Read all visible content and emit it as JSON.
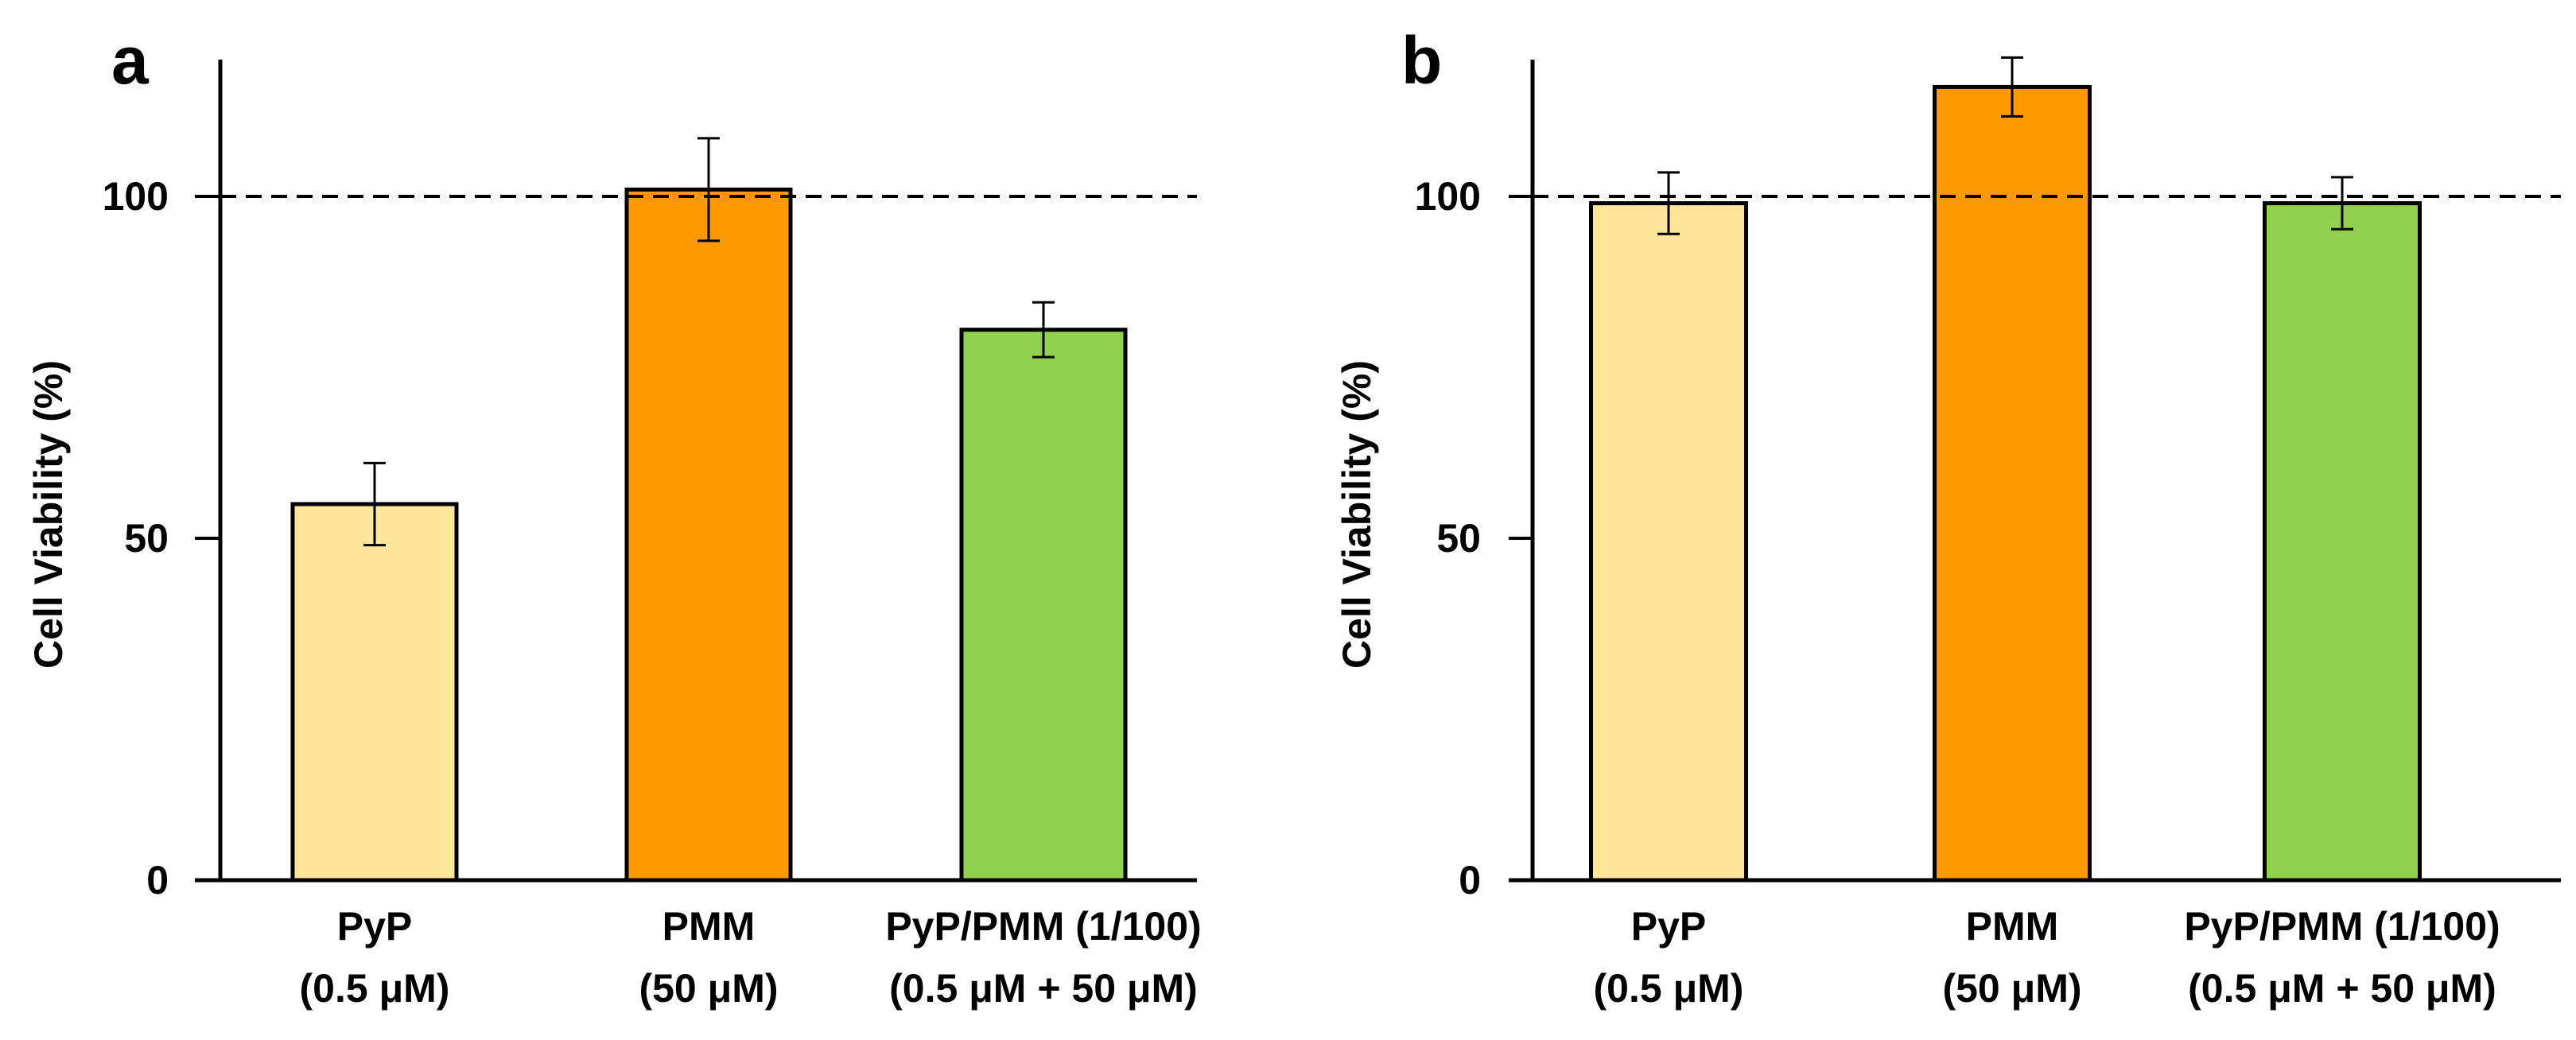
{
  "chart_data": [
    {
      "type": "bar",
      "panel_label": "a",
      "title": "",
      "xlabel": "",
      "ylabel": "Cell Viability (%)",
      "ylim": [
        0,
        120
      ],
      "yticks": [
        0,
        50,
        100
      ],
      "reference_line": 100,
      "categories": [
        {
          "line1": "PyP",
          "line2": "(0.5 μM)"
        },
        {
          "line1": "PMM",
          "line2": "(50 μM)"
        },
        {
          "line1": "PyP/PMM (1/100)",
          "line2": "(0.5 μM + 50 μM)"
        }
      ],
      "values": [
        55,
        101,
        80.5
      ],
      "errors": [
        6,
        7.5,
        4
      ],
      "colors": [
        "#FFE699",
        "#FF9900",
        "#92D050"
      ]
    },
    {
      "type": "bar",
      "panel_label": "b",
      "title": "",
      "xlabel": "",
      "ylabel": "Cell Viability (%)",
      "ylim": [
        0,
        120
      ],
      "yticks": [
        0,
        50,
        100
      ],
      "reference_line": 100,
      "categories": [
        {
          "line1": "PyP",
          "line2": "(0.5 μM)"
        },
        {
          "line1": "PMM",
          "line2": "(50 μM)"
        },
        {
          "line1": "PyP/PMM (1/100)",
          "line2": "(0.5 μM + 50 μM)"
        }
      ],
      "values": [
        99,
        116,
        99
      ],
      "errors": [
        4.5,
        4.3,
        3.8
      ],
      "colors": [
        "#FFE699",
        "#FF9900",
        "#92D050"
      ]
    }
  ]
}
